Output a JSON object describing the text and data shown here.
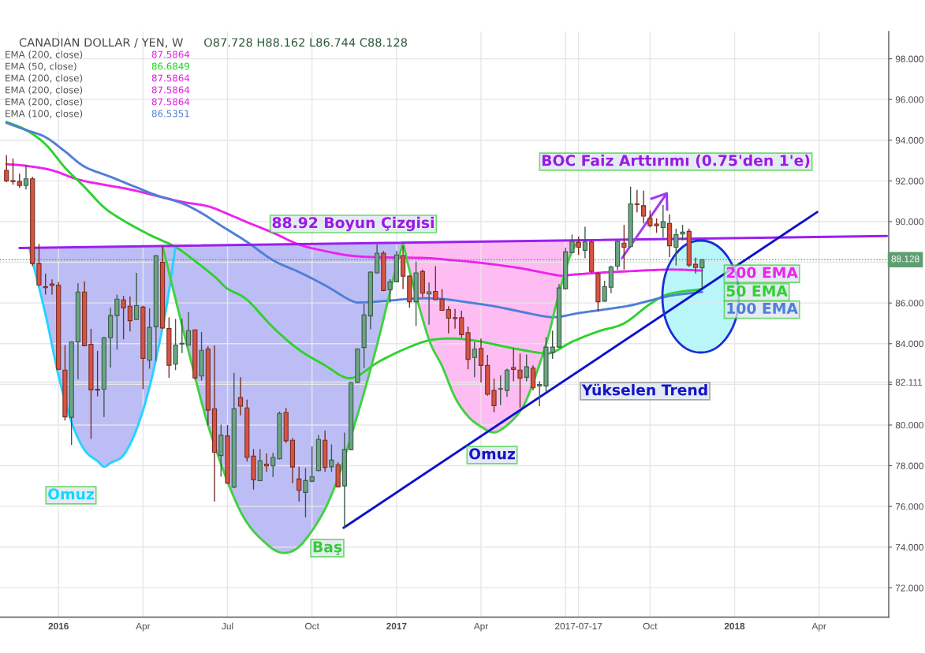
{
  "chart_data": {
    "type": "candlestick",
    "title": "CANADIAN DOLLAR / YEN, W",
    "subtitle": "O87.728 H88.162 L86.744 C88.128",
    "x": [
      "2015-11-09",
      "2015-11-16",
      "2015-11-23",
      "2015-11-30",
      "2015-12-07",
      "2015-12-14",
      "2015-12-21",
      "2015-12-28",
      "2016-01-04",
      "2016-01-11",
      "2016-01-18",
      "2016-01-25",
      "2016-02-01",
      "2016-02-08",
      "2016-02-15",
      "2016-02-22",
      "2016-02-29",
      "2016-03-07",
      "2016-03-14",
      "2016-03-21",
      "2016-03-28",
      "2016-04-04",
      "2016-04-11",
      "2016-04-18",
      "2016-04-25",
      "2016-05-02",
      "2016-05-09",
      "2016-05-16",
      "2016-05-23",
      "2016-05-30",
      "2016-06-06",
      "2016-06-13",
      "2016-06-20",
      "2016-06-27",
      "2016-07-04",
      "2016-07-11",
      "2016-07-18",
      "2016-07-25",
      "2016-08-01",
      "2016-08-08",
      "2016-08-15",
      "2016-08-22",
      "2016-08-29",
      "2016-09-05",
      "2016-09-12",
      "2016-09-19",
      "2016-09-26",
      "2016-10-03",
      "2016-10-10",
      "2016-10-17",
      "2016-10-24",
      "2016-10-31",
      "2016-11-07",
      "2016-11-14",
      "2016-11-21",
      "2016-11-28",
      "2016-12-05",
      "2016-12-12",
      "2016-12-19",
      "2016-12-26",
      "2017-01-02",
      "2017-01-09",
      "2017-01-16",
      "2017-01-23",
      "2017-01-30",
      "2017-02-06",
      "2017-02-13",
      "2017-02-20",
      "2017-02-27",
      "2017-03-06",
      "2017-03-13",
      "2017-03-20",
      "2017-03-27",
      "2017-04-03",
      "2017-04-10",
      "2017-04-17",
      "2017-04-24",
      "2017-05-01",
      "2017-05-08",
      "2017-05-15",
      "2017-05-22",
      "2017-05-29",
      "2017-06-05",
      "2017-06-12",
      "2017-06-19",
      "2017-06-26",
      "2017-07-03",
      "2017-07-10",
      "2017-07-17",
      "2017-07-24",
      "2017-07-31",
      "2017-08-07",
      "2017-08-14",
      "2017-08-21",
      "2017-08-28",
      "2017-09-04",
      "2017-09-11",
      "2017-09-18",
      "2017-09-25",
      "2017-10-02",
      "2017-10-09",
      "2017-10-16",
      "2017-10-23",
      "2017-10-30",
      "2017-11-06",
      "2017-11-13",
      "2017-11-20",
      "2017-11-27"
    ],
    "ohlc": [
      [
        92.52,
        93.26,
        91.94,
        92.0
      ],
      [
        92.01,
        93.1,
        91.81,
        91.97
      ],
      [
        91.97,
        92.35,
        91.66,
        91.77
      ],
      [
        91.77,
        92.78,
        91.58,
        92.1
      ],
      [
        92.1,
        92.2,
        87.81,
        87.94
      ],
      [
        87.94,
        88.9,
        86.84,
        86.88
      ],
      [
        86.8,
        87.44,
        86.41,
        86.75
      ],
      [
        86.93,
        87.16,
        86.41,
        86.86
      ],
      [
        86.88,
        87.03,
        82.7,
        82.74
      ],
      [
        82.7,
        83.93,
        80.22,
        80.4
      ],
      [
        80.38,
        84.12,
        79.02,
        84.09
      ],
      [
        84.09,
        86.97,
        82.25,
        86.54
      ],
      [
        86.54,
        87.06,
        83.86,
        83.9
      ],
      [
        83.97,
        84.73,
        79.32,
        81.73
      ],
      [
        81.76,
        83.65,
        81.41,
        81.72
      ],
      [
        81.76,
        84.34,
        80.4,
        84.29
      ],
      [
        84.29,
        85.76,
        82.83,
        85.38
      ],
      [
        85.38,
        86.41,
        83.7,
        86.19
      ],
      [
        86.15,
        86.35,
        84.21,
        85.76
      ],
      [
        85.84,
        86.32,
        84.6,
        85.13
      ],
      [
        85.18,
        87.48,
        85.15,
        85.87
      ],
      [
        85.8,
        85.87,
        81.76,
        83.28
      ],
      [
        83.19,
        85.74,
        82.77,
        84.8
      ],
      [
        84.83,
        88.35,
        83.16,
        88.32
      ],
      [
        88.0,
        88.78,
        84.73,
        84.77
      ],
      [
        84.74,
        85.29,
        82.32,
        82.94
      ],
      [
        82.99,
        85.22,
        82.7,
        83.93
      ],
      [
        83.98,
        85.22,
        83.54,
        84.02
      ],
      [
        83.93,
        85.55,
        83.9,
        84.64
      ],
      [
        84.68,
        84.7,
        82.25,
        82.32
      ],
      [
        82.41,
        84.58,
        82.19,
        83.67
      ],
      [
        83.74,
        83.87,
        79.99,
        80.73
      ],
      [
        80.8,
        83.91,
        76.24,
        78.66
      ],
      [
        78.5,
        80.02,
        77.47,
        79.5
      ],
      [
        79.46,
        80.0,
        77.1,
        77.14
      ],
      [
        76.95,
        82.57,
        76.9,
        80.8
      ],
      [
        81.35,
        82.35,
        80.47,
        80.93
      ],
      [
        80.84,
        81.25,
        78.21,
        78.41
      ],
      [
        78.47,
        78.82,
        76.83,
        77.31
      ],
      [
        77.27,
        78.82,
        77.24,
        78.24
      ],
      [
        78.08,
        78.6,
        77.7,
        77.99
      ],
      [
        77.99,
        78.63,
        77.44,
        78.41
      ],
      [
        78.34,
        80.67,
        78.31,
        80.57
      ],
      [
        80.62,
        80.84,
        79.12,
        79.23
      ],
      [
        79.25,
        79.36,
        77.14,
        77.94
      ],
      [
        77.35,
        77.95,
        76.24,
        76.79
      ],
      [
        76.69,
        77.89,
        75.46,
        77.27
      ],
      [
        77.24,
        78.95,
        77.18,
        77.46
      ],
      [
        77.76,
        79.51,
        77.73,
        79.29
      ],
      [
        79.25,
        79.73,
        77.7,
        77.92
      ],
      [
        77.95,
        79.05,
        77.7,
        78.28
      ],
      [
        78.05,
        78.17,
        76.93,
        76.96
      ],
      [
        77.01,
        79.63,
        74.95,
        78.79
      ],
      [
        78.79,
        82.12,
        78.76,
        82.09
      ],
      [
        82.09,
        83.77,
        82.06,
        83.74
      ],
      [
        83.81,
        85.97,
        82.8,
        85.41
      ],
      [
        85.36,
        87.55,
        84.71,
        87.52
      ],
      [
        87.48,
        88.87,
        87.45,
        88.45
      ],
      [
        88.45,
        88.55,
        86.58,
        86.61
      ],
      [
        86.65,
        87.17,
        86.03,
        87.04
      ],
      [
        87.04,
        88.55,
        87.01,
        88.36
      ],
      [
        88.33,
        88.81,
        86.68,
        87.32
      ],
      [
        87.32,
        87.35,
        85.77,
        86.06
      ],
      [
        86.06,
        88.03,
        84.87,
        87.48
      ],
      [
        87.54,
        87.64,
        86.29,
        86.48
      ],
      [
        86.44,
        87.0,
        84.93,
        86.55
      ],
      [
        86.57,
        87.81,
        86.13,
        86.16
      ],
      [
        86.18,
        86.68,
        85.61,
        85.64
      ],
      [
        85.67,
        85.84,
        84.5,
        85.25
      ],
      [
        85.28,
        85.71,
        84.74,
        85.23
      ],
      [
        85.28,
        85.62,
        84.29,
        84.44
      ],
      [
        84.54,
        84.84,
        82.74,
        83.23
      ],
      [
        83.32,
        84.09,
        82.35,
        83.73
      ],
      [
        83.77,
        84.25,
        82.09,
        82.93
      ],
      [
        82.93,
        83.45,
        81.44,
        81.51
      ],
      [
        81.7,
        82.28,
        80.63,
        80.95
      ],
      [
        81.76,
        82.44,
        80.99,
        81.79
      ],
      [
        81.7,
        82.77,
        81.38,
        82.7
      ],
      [
        82.83,
        83.77,
        82.15,
        82.73
      ],
      [
        82.7,
        83.51,
        80.86,
        82.31
      ],
      [
        82.35,
        83.47,
        82.15,
        82.86
      ],
      [
        82.8,
        82.93,
        81.7,
        81.83
      ],
      [
        81.92,
        82.15,
        80.93,
        81.99
      ],
      [
        81.92,
        84.32,
        81.64,
        83.83
      ],
      [
        83.57,
        84.64,
        83.25,
        83.83
      ],
      [
        83.83,
        86.93,
        83.8,
        86.74
      ],
      [
        86.7,
        88.72,
        86.67,
        88.51
      ],
      [
        88.48,
        89.36,
        88.45,
        89.03
      ],
      [
        88.98,
        89.26,
        88.36,
        88.74
      ],
      [
        88.59,
        89.75,
        88.2,
        89.0
      ],
      [
        89.0,
        89.07,
        87.48,
        87.55
      ],
      [
        87.45,
        87.52,
        85.58,
        86.06
      ],
      [
        86.09,
        87.09,
        86.06,
        86.8
      ],
      [
        86.77,
        87.84,
        86.48,
        87.77
      ],
      [
        87.81,
        89.06,
        87.61,
        89.03
      ],
      [
        88.94,
        89.84,
        87.64,
        88.74
      ],
      [
        88.77,
        91.71,
        88.74,
        90.87
      ],
      [
        90.87,
        91.56,
        90.45,
        90.84
      ],
      [
        90.78,
        91.52,
        89.91,
        90.27
      ],
      [
        90.16,
        90.55,
        89.71,
        89.8
      ],
      [
        89.88,
        90.16,
        89.45,
        89.8
      ],
      [
        89.71,
        90.81,
        89.2,
        90.0
      ],
      [
        89.91,
        90.36,
        88.25,
        88.81
      ],
      [
        88.74,
        89.65,
        87.84,
        89.36
      ],
      [
        89.39,
        89.84,
        89.07,
        89.48
      ],
      [
        89.52,
        89.65,
        87.77,
        87.86
      ],
      [
        87.9,
        88.23,
        87.45,
        87.74
      ],
      [
        87.728,
        88.162,
        86.744,
        88.128
      ]
    ],
    "colors": [
      "#d75442",
      "#d75442",
      "#d75442",
      "#6ba583",
      "#d75442",
      "#d75442",
      "#d75442",
      "#d75442",
      "#d75442",
      "#d75442",
      "#6ba583",
      "#6ba583",
      "#d75442",
      "#d75442",
      "#d75442",
      "#6ba583",
      "#6ba583",
      "#6ba583",
      "#d75442",
      "#d75442",
      "#6ba583",
      "#d75442",
      "#6ba583",
      "#6ba583",
      "#d75442",
      "#d75442",
      "#6ba583",
      "#6ba583",
      "#6ba583",
      "#d75442",
      "#6ba583",
      "#d75442",
      "#d75442",
      "#6ba583",
      "#d75442",
      "#6ba583",
      "#d75442",
      "#d75442",
      "#d75442",
      "#6ba583",
      "#d75442",
      "#6ba583",
      "#6ba583",
      "#d75442",
      "#d75442",
      "#d75442",
      "#6ba583",
      "#6ba583",
      "#6ba583",
      "#d75442",
      "#6ba583",
      "#d75442",
      "#6ba583",
      "#6ba583",
      "#6ba583",
      "#6ba583",
      "#6ba583",
      "#6ba583",
      "#d75442",
      "#6ba583",
      "#6ba583",
      "#d75442",
      "#d75442",
      "#6ba583",
      "#d75442",
      "#6ba583",
      "#d75442",
      "#d75442",
      "#d75442",
      "#d75442",
      "#d75442",
      "#d75442",
      "#6ba583",
      "#d75442",
      "#d75442",
      "#d75442",
      "#6ba583",
      "#6ba583",
      "#d75442",
      "#d75442",
      "#6ba583",
      "#d75442",
      "#6ba583",
      "#6ba583",
      "#6ba583",
      "#6ba583",
      "#6ba583",
      "#6ba583",
      "#d75442",
      "#6ba583",
      "#d75442",
      "#d75442",
      "#6ba583",
      "#6ba583",
      "#6ba583",
      "#d75442",
      "#6ba583",
      "#d75442",
      "#d75442",
      "#d75442",
      "#d75442",
      "#6ba583",
      "#d75442",
      "#6ba583",
      "#6ba583",
      "#d75442",
      "#d75442",
      "#6ba583"
    ],
    "series": [
      {
        "type": "line",
        "name": "200 EMA",
        "color": "#ee22ee",
        "x": [
          "2015-11-09",
          "2015-11-30",
          "2015-12-28",
          "2016-01-25",
          "2016-02-22",
          "2016-03-21",
          "2016-04-18",
          "2016-05-16",
          "2016-06-13",
          "2016-07-04",
          "2016-07-25",
          "2016-08-22",
          "2016-09-19",
          "2016-10-17",
          "2016-11-14",
          "2016-12-12",
          "2017-01-09",
          "2017-02-06",
          "2017-02-27",
          "2017-04-03",
          "2017-05-15",
          "2017-06-26",
          "2017-07-10",
          "2017-08-07",
          "2017-09-04",
          "2017-10-23",
          "2017-11-27"
        ],
        "values": [
          92.82,
          92.74,
          92.52,
          92.07,
          91.81,
          91.58,
          91.27,
          90.97,
          90.75,
          90.38,
          89.97,
          89.45,
          88.87,
          88.55,
          88.32,
          88.25,
          88.23,
          88.2,
          88.12,
          87.97,
          87.71,
          87.35,
          87.39,
          87.48,
          87.55,
          87.64,
          87.59
        ]
      },
      {
        "type": "line",
        "name": "50 EMA",
        "color": "#2fd12f",
        "x": [
          "2015-11-09",
          "2015-11-30",
          "2015-12-21",
          "2016-01-11",
          "2016-02-01",
          "2016-02-22",
          "2016-03-14",
          "2016-04-11",
          "2016-05-09",
          "2016-05-30",
          "2016-06-20",
          "2016-07-04",
          "2016-07-25",
          "2016-08-22",
          "2016-09-19",
          "2016-10-17",
          "2016-11-07",
          "2016-11-21",
          "2016-12-12",
          "2017-01-09",
          "2017-02-06",
          "2017-03-06",
          "2017-04-03",
          "2017-05-01",
          "2017-06-05",
          "2017-06-19",
          "2017-07-10",
          "2017-08-07",
          "2017-09-04",
          "2017-10-02",
          "2017-10-23",
          "2017-11-27"
        ],
        "values": [
          94.9,
          94.5,
          93.8,
          92.65,
          91.7,
          90.7,
          90.05,
          89.35,
          88.75,
          88.06,
          87.3,
          86.7,
          86.16,
          84.8,
          83.7,
          82.93,
          82.35,
          82.41,
          83.06,
          83.7,
          84.16,
          84.25,
          84.1,
          83.83,
          83.55,
          83.57,
          84.09,
          84.6,
          85.0,
          85.95,
          86.45,
          86.68
        ]
      },
      {
        "type": "line",
        "name": "100 EMA",
        "color": "#4f7fd8",
        "x": [
          "2015-11-09",
          "2015-11-30",
          "2015-12-21",
          "2016-01-11",
          "2016-02-01",
          "2016-02-29",
          "2016-03-28",
          "2016-04-18",
          "2016-05-16",
          "2016-06-06",
          "2016-06-27",
          "2016-07-25",
          "2016-08-22",
          "2016-09-19",
          "2016-10-17",
          "2016-11-14",
          "2016-11-28",
          "2016-12-26",
          "2017-01-23",
          "2017-02-20",
          "2017-03-20",
          "2017-04-17",
          "2017-05-15",
          "2017-06-12",
          "2017-06-26",
          "2017-07-17",
          "2017-08-14",
          "2017-09-11",
          "2017-10-09",
          "2017-10-30",
          "2017-11-27"
        ],
        "values": [
          94.85,
          94.5,
          94.15,
          93.45,
          92.7,
          92.2,
          91.68,
          91.3,
          90.9,
          90.42,
          89.8,
          89.0,
          88.1,
          87.52,
          86.87,
          86.12,
          86.03,
          86.12,
          86.22,
          86.2,
          86.03,
          85.84,
          85.58,
          85.33,
          85.32,
          85.5,
          85.68,
          85.88,
          86.2,
          86.4,
          86.54
        ]
      },
      {
        "type": "line",
        "color": "#bdbdf6",
        "x": [
          "2015-12-03T12:00",
          "2015-12-21",
          "2016-01-04",
          "2016-01-18",
          "2016-02-01",
          "2016-02-15",
          "2016-02-22",
          "2016-02-29",
          "2016-03-14",
          "2016-03-28",
          "2016-04-11",
          "2016-04-25",
          "2016-05-02",
          "2016-05-09"
        ],
        "values": [
          null,
          null,
          null,
          null,
          null,
          null,
          null,
          null,
          null,
          null,
          null,
          null,
          null,
          null
        ],
        "lower": [
          88.71,
          85.44,
          82.44,
          80.15,
          78.78,
          78.23,
          77.95,
          78.14,
          78.52,
          79.79,
          81.86,
          84.78,
          86.57,
          88.81
        ],
        "upper": [
          88.71,
          88.72,
          88.73,
          88.73,
          88.74,
          88.75,
          88.75,
          88.76,
          88.77,
          88.78,
          88.79,
          88.8,
          88.8,
          88.81
        ]
      },
      {
        "type": "line",
        "color": "#bdbdf6",
        "x": [
          "2016-04-25",
          "2016-05-23",
          "2016-06-16T12:00",
          "2016-07-18",
          "2016-08-15",
          "2016-09-05",
          "2016-09-26",
          "2016-10-24",
          "2016-11-21",
          "2016-12-12",
          "2016-12-29T12:00",
          "2017-01-09"
        ],
        "values": [
          null,
          null,
          null,
          null,
          null,
          null,
          null,
          null,
          null,
          null,
          null,
          null
        ],
        "lower": [
          88.8,
          83.64,
          79.49,
          75.75,
          74.16,
          73.72,
          74.37,
          76.57,
          80.51,
          83.94,
          87.2,
          88.96
        ],
        "upper": [
          88.8,
          88.82,
          88.83,
          88.85,
          88.87,
          88.88,
          88.89,
          88.91,
          88.93,
          88.94,
          88.96,
          88.96
        ]
      },
      {
        "type": "line",
        "color": "#fdbdf3",
        "x": [
          "2017-01-09",
          "2017-01-19T12:00",
          "2017-02-06",
          "2017-02-20",
          "2017-03-06",
          "2017-03-20",
          "2017-04-03",
          "2017-04-17",
          "2017-05-01",
          "2017-05-15",
          "2017-05-25T12:00",
          "2017-06-12",
          "2017-06-22T12:00",
          "2017-07-03",
          "2017-07-10",
          "2017-07-17"
        ],
        "values": [
          null,
          null,
          null,
          null,
          null,
          null,
          null,
          null,
          null,
          null,
          null,
          null,
          null,
          null,
          null,
          null
        ],
        "lower": [
          88.96,
          86.97,
          84.2,
          82.9,
          81.36,
          80.43,
          79.92,
          79.64,
          79.99,
          80.68,
          81.64,
          83.97,
          85.85,
          87.63,
          88.54,
          89.08
        ],
        "upper": [
          88.96,
          88.97,
          88.98,
          88.99,
          88.99,
          89.0,
          89.01,
          89.02,
          89.03,
          89.04,
          89.05,
          89.06,
          89.07,
          89.07,
          89.08,
          89.08
        ]
      },
      {
        "type": "line",
        "color": "#22d4ff",
        "x": [
          "2015-12-03T12:00",
          "2015-12-21",
          "2016-01-04",
          "2016-01-18",
          "2016-02-01",
          "2016-02-15",
          "2016-02-22",
          "2016-02-29",
          "2016-03-14",
          "2016-03-28",
          "2016-04-11",
          "2016-04-25",
          "2016-05-02",
          "2016-05-09"
        ],
        "values": [
          88.71,
          85.44,
          82.44,
          80.15,
          78.78,
          78.23,
          77.95,
          78.14,
          78.52,
          79.79,
          81.86,
          84.78,
          86.57,
          88.81
        ]
      },
      {
        "type": "line",
        "color": "#3fd23f",
        "x": [
          "2016-04-25",
          "2016-05-23",
          "2016-06-16T12:00",
          "2016-07-18",
          "2016-08-15",
          "2016-09-05",
          "2016-09-26",
          "2016-10-24",
          "2016-11-21",
          "2016-12-12",
          "2016-12-29T12:00",
          "2017-01-09"
        ],
        "values": [
          88.8,
          83.64,
          79.49,
          75.75,
          74.16,
          73.72,
          74.37,
          76.57,
          80.51,
          83.94,
          87.2,
          88.96
        ]
      },
      {
        "type": "line",
        "color": "#3fd23f",
        "x": [
          "2017-01-09",
          "2017-01-19T12:00",
          "2017-02-06",
          "2017-02-20",
          "2017-03-06",
          "2017-03-20",
          "2017-04-03",
          "2017-04-17",
          "2017-05-01",
          "2017-05-15",
          "2017-05-25T12:00",
          "2017-06-12",
          "2017-06-22T12:00",
          "2017-07-03",
          "2017-07-10",
          "2017-07-17"
        ],
        "values": [
          88.96,
          86.97,
          84.2,
          82.9,
          81.36,
          80.43,
          79.92,
          79.64,
          79.99,
          80.68,
          81.64,
          83.97,
          85.85,
          87.63,
          88.54,
          89.08
        ]
      },
      {
        "type": "line",
        "color": "#9b1ff0",
        "x": [
          "2015-11-23",
          "2018-06-14"
        ],
        "values": [
          88.7,
          89.29
        ]
      },
      {
        "type": "line",
        "color": "#1111cc",
        "x": [
          "2016-11-06",
          "2018-03-31"
        ],
        "values": [
          74.95,
          90.47
        ]
      }
    ],
    "xlim": [
      "2015-11-02",
      "2018-06-16"
    ],
    "ylim": [
      70.56,
      99.34
    ],
    "xticks": [
      {
        "value": "2016-01-04",
        "label": "2016"
      },
      {
        "value": "2016-04-04",
        "label": "Apr"
      },
      {
        "value": "2016-07-04",
        "label": "Jul"
      },
      {
        "value": "2016-10-03",
        "label": "Oct"
      },
      {
        "value": "2017-01-02",
        "label": "2017"
      },
      {
        "value": "2017-04-03",
        "label": "Apr"
      },
      {
        "value": "2017-07-03",
        "label": null
      },
      {
        "value": "2017-07-17",
        "label": "2017-07-17"
      },
      {
        "value": "2017-10-02",
        "label": "Oct"
      },
      {
        "value": "2018-01-01",
        "label": "2018"
      },
      {
        "value": "2018-04-02",
        "label": "Apr"
      }
    ],
    "yticks": [
      {
        "value": 72,
        "label": "72.000"
      },
      {
        "value": 74,
        "label": "74.000"
      },
      {
        "value": 76,
        "label": "76.000"
      },
      {
        "value": 78,
        "label": "78.000"
      },
      {
        "value": 80,
        "label": "80.000"
      },
      {
        "value": 82,
        "label": null
      },
      {
        "value": 82.111,
        "label": "82.111"
      },
      {
        "value": 84,
        "label": "84.000"
      },
      {
        "value": 86,
        "label": "86.000"
      },
      {
        "value": 88,
        "label": null
      },
      {
        "value": 90,
        "label": "90.000"
      },
      {
        "value": 92,
        "label": "92.000"
      },
      {
        "value": 94,
        "label": "94.000"
      },
      {
        "value": 96,
        "label": "96.000"
      },
      {
        "value": 98,
        "label": "98.000"
      }
    ],
    "grid": true,
    "ref_lines": [
      {
        "axis": "y",
        "value": 88.128,
        "label": "88.128",
        "color": "#5f9e72",
        "line_style": "dotted"
      }
    ],
    "annotations": [
      "EMA (200, close)",
      "87.5864",
      "EMA (50, close)",
      "86.6849",
      "EMA (200, close)",
      "87.5864",
      "EMA (200, close)",
      "87.5864",
      "EMA (200, close)",
      "87.5864",
      "EMA (100, close)",
      "86.5351",
      "BOC Faiz Arttırımı (0.75'den 1'e)",
      "88.92 Boyun Çizgisi",
      "Yükselen Trend",
      "Omuz",
      "Baş",
      "Omuz"
    ]
  }
}
